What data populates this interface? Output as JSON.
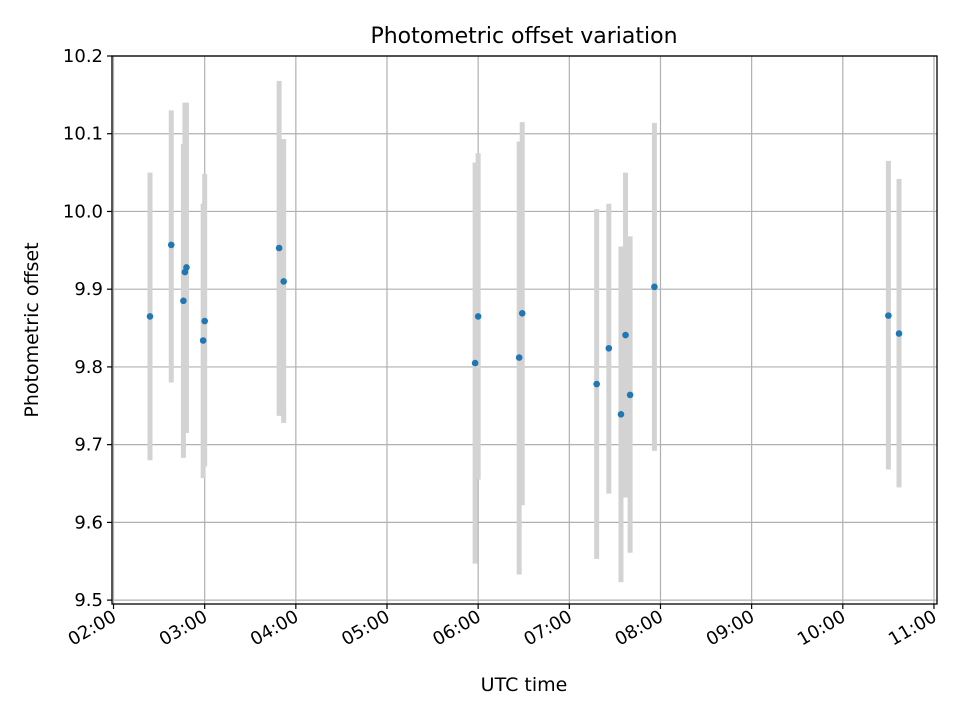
{
  "chart_data": {
    "type": "scatter",
    "title": "Photometric offset variation",
    "xlabel": "UTC time",
    "ylabel": "Photometric offset",
    "x_unit": "UTC time (HH:MM)",
    "xlim": [
      "01:59",
      "11:02"
    ],
    "ylim": [
      9.495,
      10.2
    ],
    "x_ticks": [
      "02:00",
      "03:00",
      "04:00",
      "05:00",
      "06:00",
      "07:00",
      "08:00",
      "09:00",
      "10:00",
      "11:00"
    ],
    "y_ticks": [
      9.5,
      9.6,
      9.7,
      9.8,
      9.9,
      10.0,
      10.1,
      10.2
    ],
    "y_tick_labels": [
      "9.5",
      "9.6",
      "9.7",
      "9.8",
      "9.9",
      "10.0",
      "10.1",
      "10.2"
    ],
    "grid": true,
    "point_color": "#1f77b4",
    "errorbar_color": "#d3d3d3",
    "points": [
      {
        "x": "02:24",
        "y": 9.865,
        "low": 9.68,
        "high": 10.05
      },
      {
        "x": "02:38",
        "y": 9.957,
        "low": 9.78,
        "high": 10.13
      },
      {
        "x": "02:46",
        "y": 9.885,
        "low": 9.683,
        "high": 10.087
      },
      {
        "x": "02:47",
        "y": 9.922,
        "low": 9.715,
        "high": 10.14
      },
      {
        "x": "02:48",
        "y": 9.928,
        "low": 9.715,
        "high": 10.14
      },
      {
        "x": "02:59",
        "y": 9.834,
        "low": 9.657,
        "high": 10.01
      },
      {
        "x": "03:00",
        "y": 9.859,
        "low": 9.672,
        "high": 10.048
      },
      {
        "x": "03:49",
        "y": 9.953,
        "low": 9.737,
        "high": 10.168
      },
      {
        "x": "03:52",
        "y": 9.91,
        "low": 9.728,
        "high": 10.093
      },
      {
        "x": "05:58",
        "y": 9.805,
        "low": 9.547,
        "high": 10.063
      },
      {
        "x": "06:00",
        "y": 9.865,
        "low": 9.655,
        "high": 10.075
      },
      {
        "x": "06:27",
        "y": 9.812,
        "low": 9.533,
        "high": 10.09
      },
      {
        "x": "06:29",
        "y": 9.869,
        "low": 9.622,
        "high": 10.115
      },
      {
        "x": "07:18",
        "y": 9.778,
        "low": 9.553,
        "high": 10.003
      },
      {
        "x": "07:26",
        "y": 9.824,
        "low": 9.637,
        "high": 10.01
      },
      {
        "x": "07:34",
        "y": 9.739,
        "low": 9.523,
        "high": 9.955
      },
      {
        "x": "07:37",
        "y": 9.841,
        "low": 9.632,
        "high": 10.05
      },
      {
        "x": "07:40",
        "y": 9.764,
        "low": 9.561,
        "high": 9.968
      },
      {
        "x": "07:56",
        "y": 9.903,
        "low": 9.692,
        "high": 10.114
      },
      {
        "x": "10:30",
        "y": 9.866,
        "low": 9.668,
        "high": 10.065
      },
      {
        "x": "10:37",
        "y": 9.843,
        "low": 9.645,
        "high": 10.042
      }
    ]
  }
}
